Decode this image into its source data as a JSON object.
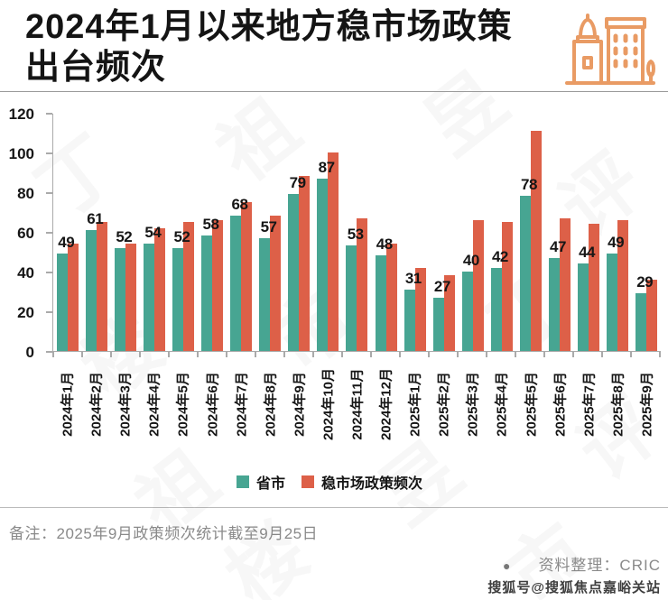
{
  "header": {
    "title_line1": "2024年1月以来地方稳市场政策",
    "title_line2": "出台频次",
    "icon": "buildings-icon"
  },
  "chart_data": {
    "type": "bar",
    "title": "2024年1月以来地方稳市场政策出台频次",
    "categories": [
      "2024年1月",
      "2024年2月",
      "2024年3月",
      "2024年4月",
      "2024年5月",
      "2024年6月",
      "2024年7月",
      "2024年8月",
      "2024年9月",
      "2024年10月",
      "2024年11月",
      "2024年12月",
      "2025年1月",
      "2025年2月",
      "2025年3月",
      "2025年4月",
      "2025年5月",
      "2025年6月",
      "2025年7月",
      "2025年8月",
      "2025年9月"
    ],
    "series": [
      {
        "name": "省市",
        "color": "#47A592",
        "values": [
          49,
          61,
          52,
          54,
          52,
          58,
          68,
          57,
          79,
          87,
          53,
          48,
          31,
          27,
          40,
          42,
          78,
          47,
          44,
          49,
          29
        ],
        "data_labels": true
      },
      {
        "name": "稳市场政策频次",
        "color": "#DD6048",
        "values": [
          54,
          65,
          54,
          62,
          65,
          66,
          75,
          68,
          88,
          100,
          67,
          54,
          42,
          38,
          66,
          65,
          111,
          67,
          64,
          66,
          36
        ],
        "data_labels": false
      }
    ],
    "xlabel": "",
    "ylabel": "",
    "ylim": [
      0,
      120
    ],
    "yticks": [
      0,
      20,
      40,
      60,
      80,
      100,
      120
    ],
    "grid": false,
    "legend_position": "bottom",
    "x_tick_rotation": 90
  },
  "footer": {
    "note": "备注：2025年9月政策频次统计截至9月25日",
    "source_bullet": "●",
    "source": "资料整理：CRIC",
    "watermark_account": "搜狐号@搜狐焦点嘉峪关站"
  },
  "watermark": {
    "text": "丁祖昱评楼市"
  },
  "colors": {
    "series1": "#47A592",
    "series2": "#DD6048",
    "icon": "#E99B64",
    "axis": "#AAAAAA",
    "note_gray": "#8A8A8A",
    "sohu_dark": "#3F3F3F"
  }
}
